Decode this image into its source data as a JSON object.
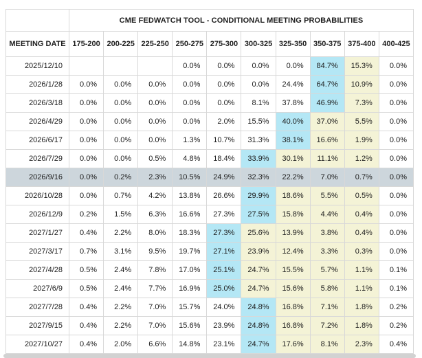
{
  "table": {
    "title": "CME FEDWATCH TOOL - CONDITIONAL MEETING PROBABILITIES",
    "corner_label": "MEETING DATE",
    "rate_bins": [
      "175-200",
      "200-225",
      "225-250",
      "250-275",
      "275-300",
      "300-325",
      "325-350",
      "350-375",
      "375-400",
      "400-425"
    ],
    "rows": [
      {
        "date": "2025/12/10",
        "values": [
          "",
          "",
          "",
          "0.0%",
          "0.0%",
          "0.0%",
          "0.0%",
          "84.7%",
          "15.3%",
          "0.0%"
        ],
        "max_col": 7,
        "tail_cols": [
          8
        ],
        "selected": false
      },
      {
        "date": "2026/1/28",
        "values": [
          "0.0%",
          "0.0%",
          "0.0%",
          "0.0%",
          "0.0%",
          "0.0%",
          "24.4%",
          "64.7%",
          "10.9%",
          "0.0%"
        ],
        "max_col": 7,
        "tail_cols": [
          8
        ],
        "selected": false
      },
      {
        "date": "2026/3/18",
        "values": [
          "0.0%",
          "0.0%",
          "0.0%",
          "0.0%",
          "0.0%",
          "8.1%",
          "37.8%",
          "46.9%",
          "7.3%",
          "0.0%"
        ],
        "max_col": 7,
        "tail_cols": [
          8
        ],
        "selected": false
      },
      {
        "date": "2026/4/29",
        "values": [
          "0.0%",
          "0.0%",
          "0.0%",
          "0.0%",
          "2.0%",
          "15.5%",
          "40.0%",
          "37.0%",
          "5.5%",
          "0.0%"
        ],
        "max_col": 6,
        "tail_cols": [
          7,
          8
        ],
        "selected": false
      },
      {
        "date": "2026/6/17",
        "values": [
          "0.0%",
          "0.0%",
          "0.0%",
          "1.3%",
          "10.7%",
          "31.3%",
          "38.1%",
          "16.6%",
          "1.9%",
          "0.0%"
        ],
        "max_col": 6,
        "tail_cols": [
          7,
          8
        ],
        "selected": false
      },
      {
        "date": "2026/7/29",
        "values": [
          "0.0%",
          "0.0%",
          "0.5%",
          "4.8%",
          "18.4%",
          "33.9%",
          "30.1%",
          "11.1%",
          "1.2%",
          "0.0%"
        ],
        "max_col": 5,
        "tail_cols": [
          6,
          7,
          8
        ],
        "selected": false
      },
      {
        "date": "2026/9/16",
        "values": [
          "0.0%",
          "0.2%",
          "2.3%",
          "10.5%",
          "24.9%",
          "32.3%",
          "22.2%",
          "7.0%",
          "0.7%",
          "0.0%"
        ],
        "max_col": null,
        "tail_cols": [],
        "selected": true
      },
      {
        "date": "2026/10/28",
        "values": [
          "0.0%",
          "0.7%",
          "4.2%",
          "13.8%",
          "26.6%",
          "29.9%",
          "18.6%",
          "5.5%",
          "0.5%",
          "0.0%"
        ],
        "max_col": 5,
        "tail_cols": [
          6,
          7,
          8
        ],
        "selected": false
      },
      {
        "date": "2026/12/9",
        "values": [
          "0.2%",
          "1.5%",
          "6.3%",
          "16.6%",
          "27.3%",
          "27.5%",
          "15.8%",
          "4.4%",
          "0.4%",
          "0.0%"
        ],
        "max_col": 5,
        "tail_cols": [
          6,
          7,
          8
        ],
        "selected": false
      },
      {
        "date": "2027/1/27",
        "values": [
          "0.4%",
          "2.2%",
          "8.0%",
          "18.3%",
          "27.3%",
          "25.6%",
          "13.9%",
          "3.8%",
          "0.4%",
          "0.0%"
        ],
        "max_col": 4,
        "tail_cols": [
          5,
          6,
          7,
          8
        ],
        "selected": false
      },
      {
        "date": "2027/3/17",
        "values": [
          "0.7%",
          "3.1%",
          "9.5%",
          "19.7%",
          "27.1%",
          "23.9%",
          "12.4%",
          "3.3%",
          "0.3%",
          "0.0%"
        ],
        "max_col": 4,
        "tail_cols": [
          5,
          6,
          7,
          8
        ],
        "selected": false
      },
      {
        "date": "2027/4/28",
        "values": [
          "0.5%",
          "2.4%",
          "7.8%",
          "17.0%",
          "25.1%",
          "24.7%",
          "15.5%",
          "5.7%",
          "1.1%",
          "0.1%"
        ],
        "max_col": 4,
        "tail_cols": [
          5,
          6,
          7,
          8
        ],
        "selected": false
      },
      {
        "date": "2027/6/9",
        "values": [
          "0.5%",
          "2.4%",
          "7.7%",
          "16.9%",
          "25.0%",
          "24.7%",
          "15.6%",
          "5.8%",
          "1.1%",
          "0.1%"
        ],
        "max_col": 4,
        "tail_cols": [
          5,
          6,
          7,
          8
        ],
        "selected": false
      },
      {
        "date": "2027/7/28",
        "values": [
          "0.4%",
          "2.2%",
          "7.0%",
          "15.7%",
          "24.0%",
          "24.8%",
          "16.8%",
          "7.1%",
          "1.8%",
          "0.2%"
        ],
        "max_col": 5,
        "tail_cols": [
          6,
          7,
          8
        ],
        "selected": false
      },
      {
        "date": "2027/9/15",
        "values": [
          "0.4%",
          "2.2%",
          "7.0%",
          "15.6%",
          "23.9%",
          "24.8%",
          "16.8%",
          "7.2%",
          "1.8%",
          "0.2%"
        ],
        "max_col": 5,
        "tail_cols": [
          6,
          7,
          8
        ],
        "selected": false
      },
      {
        "date": "2027/10/27",
        "values": [
          "0.4%",
          "2.0%",
          "6.6%",
          "14.8%",
          "23.1%",
          "24.7%",
          "17.6%",
          "8.1%",
          "2.3%",
          "0.4%"
        ],
        "max_col": 5,
        "tail_cols": [
          6,
          7,
          8
        ],
        "selected": false
      }
    ]
  },
  "colors": {
    "max_highlight": "#b4e7f5",
    "tail_highlight": "#f4f3d6",
    "selected_row": "#cdd6dc"
  }
}
